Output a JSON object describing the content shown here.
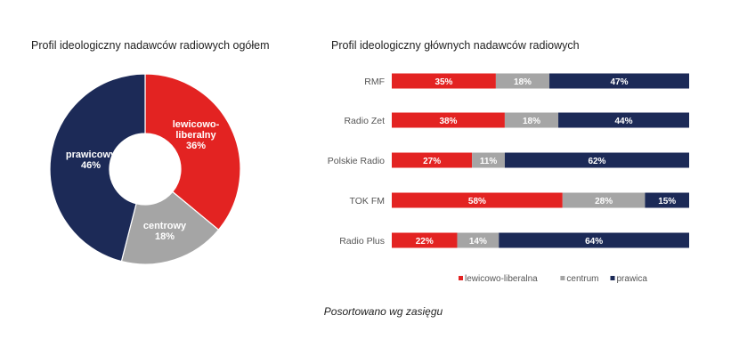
{
  "chart_data": [
    {
      "type": "pie",
      "title": "Profil ideologiczny nadawców radiowych ogółem",
      "slices": [
        {
          "label": "lewicowo-\nliberalny",
          "value": 36,
          "value_label": "36%",
          "color": "#e32322"
        },
        {
          "label": "centrowy",
          "value": 18,
          "value_label": "18%",
          "color": "#a5a5a5"
        },
        {
          "label": "prawicowy",
          "value": 46,
          "value_label": "46%",
          "color": "#1c2a57"
        }
      ],
      "donut": true
    },
    {
      "type": "bar",
      "orientation": "horizontal",
      "stacked": true,
      "title": "Profil ideologiczny głównych nadawców radiowych",
      "categories": [
        "RMF",
        "Radio Zet",
        "Polskie Radio",
        "TOK FM",
        "Radio Plus"
      ],
      "series": [
        {
          "name": "lewicowo-liberalna",
          "color": "#e32322",
          "values": [
            35,
            38,
            27,
            58,
            22
          ]
        },
        {
          "name": "centrum",
          "color": "#a5a5a5",
          "values": [
            18,
            18,
            11,
            28,
            14
          ]
        },
        {
          "name": "prawica",
          "color": "#1c2a57",
          "values": [
            47,
            44,
            62,
            15,
            64
          ]
        }
      ],
      "legend_position": "bottom",
      "grid": false
    }
  ],
  "note": "Posortowano wg zasięgu"
}
